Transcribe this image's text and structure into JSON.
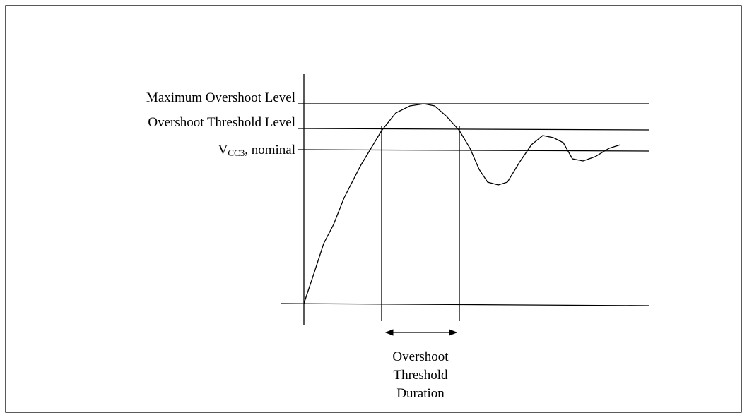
{
  "labels": {
    "maximum_overshoot_level": "Maximum Overshoot Level",
    "overshoot_threshold_level": "Overshoot Threshold Level",
    "vcc": {
      "symbol": "V",
      "subscript": "CC3",
      "suffix": ", nominal"
    },
    "duration": [
      "Overshoot",
      "Threshold",
      "Duration"
    ]
  }
}
